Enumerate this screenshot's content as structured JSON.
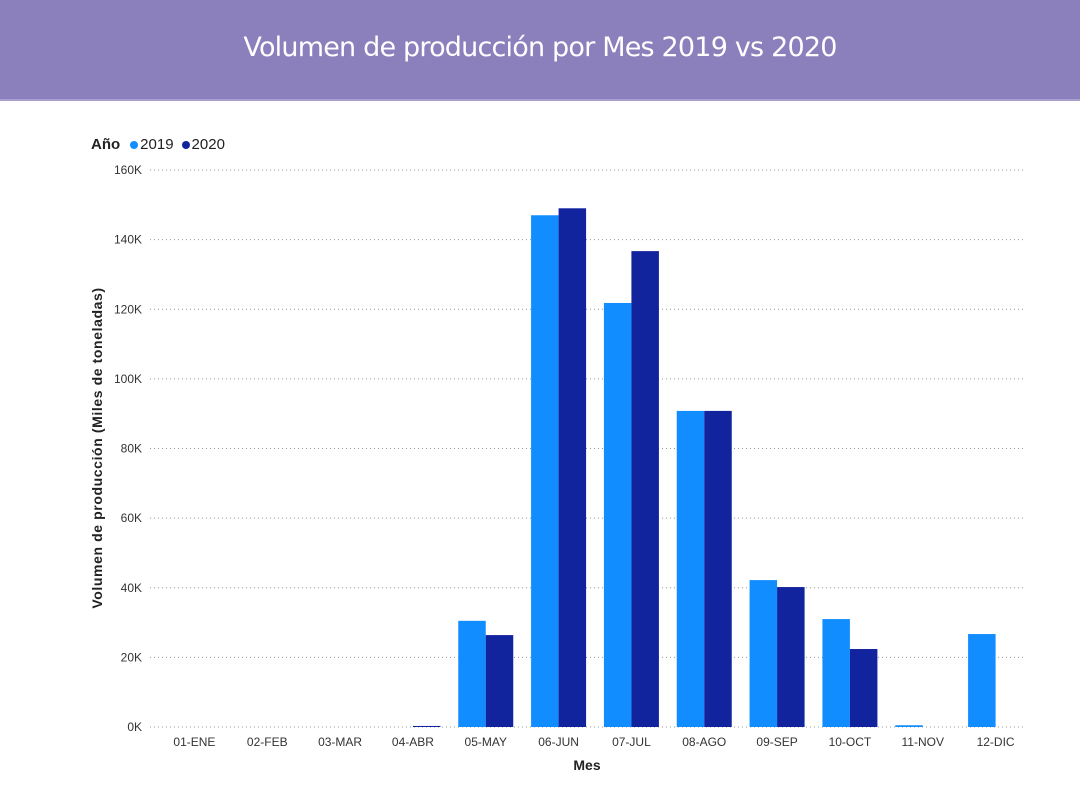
{
  "header": {
    "title": "Volumen de producción por Mes 2019 vs 2020"
  },
  "legend": {
    "title": "Año"
  },
  "chart_data": {
    "type": "bar",
    "title": "Volumen de producción por Mes 2019 vs 2020",
    "xlabel": "Mes",
    "ylabel": "Volumen de producción (Miles de toneladas)",
    "ylim": [
      0,
      160000
    ],
    "yticks": [
      0,
      20000,
      40000,
      60000,
      80000,
      100000,
      120000,
      140000,
      160000
    ],
    "ytick_labels": [
      "0K",
      "20K",
      "40K",
      "60K",
      "80K",
      "100K",
      "120K",
      "140K",
      "160K"
    ],
    "grid": true,
    "legend_position": "top-left",
    "categories": [
      "01-ENE",
      "02-FEB",
      "03-MAR",
      "04-ABR",
      "05-MAY",
      "06-JUN",
      "07-JUL",
      "08-AGO",
      "09-SEP",
      "10-OCT",
      "11-NOV",
      "12-DIC"
    ],
    "series": [
      {
        "name": "2019",
        "color": "#118dff",
        "values": [
          0,
          0,
          0,
          0,
          30500,
          147000,
          121800,
          90800,
          42200,
          31000,
          500,
          26700
        ]
      },
      {
        "name": "2020",
        "color": "#12239e",
        "values": [
          0,
          0,
          0,
          300,
          26400,
          149000,
          136700,
          90800,
          40200,
          22400,
          0,
          0
        ]
      }
    ]
  }
}
